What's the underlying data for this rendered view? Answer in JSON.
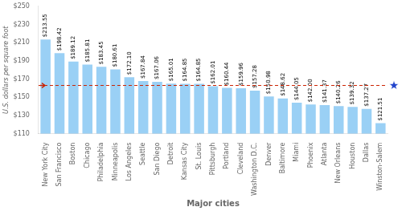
{
  "chart_data": {
    "type": "bar",
    "categories": [
      "New York City",
      "San Francisco",
      "Boston",
      "Chicago",
      "Philadelphia",
      "Minneapolis",
      "Los Angeles",
      "Seattle",
      "San Diego",
      "Detroit",
      "Kansas City",
      "St. Louis",
      "Pittsburgh",
      "Portland",
      "Cleveland",
      "Washington D.C.",
      "Denver",
      "Baltimore",
      "Miami",
      "Phoenix",
      "Atlanta",
      "New Orleans",
      "Houston",
      "Dallas",
      "Winston-Salem"
    ],
    "values": [
      213.55,
      198.42,
      189.12,
      185.81,
      183.45,
      180.61,
      172.1,
      167.84,
      167.06,
      165.01,
      164.85,
      164.85,
      162.01,
      160.44,
      159.96,
      157.28,
      150.98,
      148.62,
      144.05,
      142.0,
      141.37,
      140.26,
      139.32,
      137.27,
      121.51
    ],
    "value_labels": [
      "$213.55",
      "$198.42",
      "$189.12",
      "$185.81",
      "$183.45",
      "$180.61",
      "$172.10",
      "$167.84",
      "$167.06",
      "$165.01",
      "$164.85",
      "$164.85",
      "$162.01",
      "$160.44",
      "$159.96",
      "$157.28",
      "$150.98",
      "$148.62",
      "$144.05",
      "$142.00",
      "$141.37",
      "$140.26",
      "$139.32",
      "$137.27",
      "$121.51"
    ],
    "data_labels": true,
    "xlabel": "Major cities",
    "ylabel": "U.S. dollars per square foot",
    "ylim": [
      110,
      250
    ],
    "yticks": [
      {
        "value": 110,
        "label": "$110"
      },
      {
        "value": 130,
        "label": "$130"
      },
      {
        "value": 150,
        "label": "$150"
      },
      {
        "value": 170,
        "label": "$170"
      },
      {
        "value": 190,
        "label": "$190"
      },
      {
        "value": 210,
        "label": "$210"
      },
      {
        "value": 230,
        "label": "$230"
      },
      {
        "value": 250,
        "label": "$250"
      }
    ],
    "grid": false,
    "reference_line": {
      "y": 163.0,
      "color": "#cc2200",
      "marker_color": "#2244cc"
    }
  }
}
